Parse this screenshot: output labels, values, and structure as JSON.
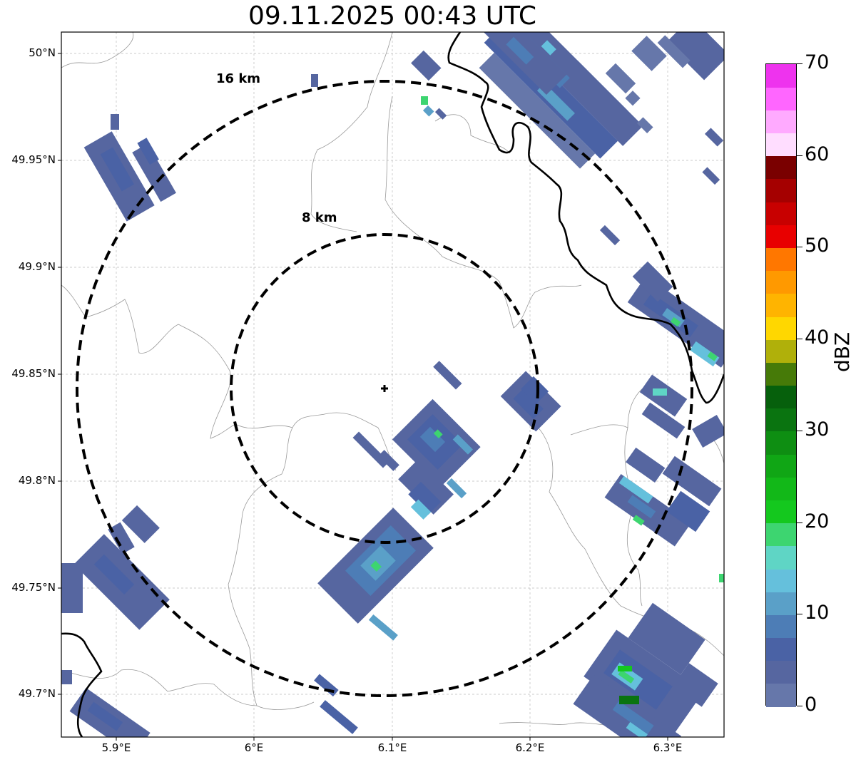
{
  "title": "09.11.2025 00:43 UTC",
  "x_ticks": [
    "5.9°E",
    "6°E",
    "6.1°E",
    "6.2°E",
    "6.3°E"
  ],
  "y_ticks": [
    "50°N",
    "49.95°N",
    "49.9°N",
    "49.85°N",
    "49.8°N",
    "49.75°N",
    "49.7°N"
  ],
  "rings": [
    {
      "label": "16 km",
      "radius_km": 16
    },
    {
      "label": "8 km",
      "radius_km": 8
    }
  ],
  "radar_site": {
    "lon": 6.096,
    "lat": 49.843
  },
  "colorbar": {
    "unit": "dBZ",
    "min": 0,
    "max": 70,
    "ticks": [
      "0",
      "10",
      "20",
      "30",
      "40",
      "50",
      "60",
      "70"
    ],
    "colors": [
      "#6677aa",
      "#5666a0",
      "#4a62a5",
      "#4d7db6",
      "#5aa0c8",
      "#65c0dc",
      "#5fd5c5",
      "#3dd570",
      "#14c81e",
      "#12b818",
      "#10a615",
      "#0e8e12",
      "#0a7410",
      "#06600c",
      "#467a08",
      "#b0b00a",
      "#ffd700",
      "#ffb400",
      "#ff9900",
      "#ff7700",
      "#e80000",
      "#c80000",
      "#a50000",
      "#7a0000",
      "#ffddff",
      "#ffaaff",
      "#ff66ff",
      "#ee33ee"
    ]
  }
}
